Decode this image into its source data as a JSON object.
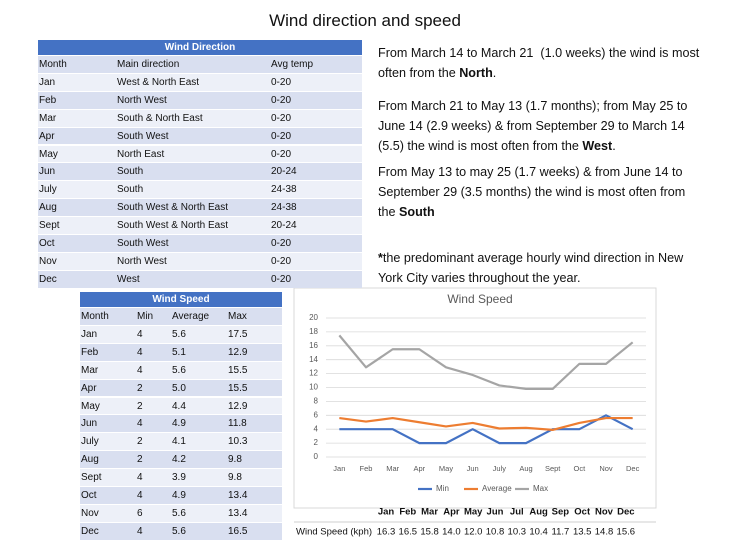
{
  "title": "Wind direction and speed",
  "direction_table": {
    "title": "Wind Direction",
    "columns": [
      "Month",
      "Main direction",
      "Avg temp"
    ],
    "rows": [
      [
        "Jan",
        "West & North East",
        "0-20"
      ],
      [
        "Feb",
        "North West",
        "0-20"
      ],
      [
        "Mar",
        "South & North East",
        "0-20"
      ],
      [
        "Apr",
        "South West",
        "0-20"
      ],
      [
        "May",
        "North East",
        "0-20"
      ],
      [
        "Jun",
        "South",
        "20-24"
      ],
      [
        "July",
        "South",
        "24-38"
      ],
      [
        "Aug",
        "South West & North East",
        "24-38"
      ],
      [
        "Sept",
        "South West & North East",
        "20-24"
      ],
      [
        "Oct",
        "South West",
        "0-20"
      ],
      [
        "Nov",
        "North West",
        "0-20"
      ],
      [
        "Dec",
        "West",
        "0-20"
      ]
    ]
  },
  "notes": [
    [
      {
        "text": "From March 14 to March 21  (1.0 weeks) the wind is most often from the "
      },
      {
        "text": "North",
        "bold": true
      },
      {
        "text": "."
      }
    ],
    [
      {
        "text": "From March 21 to May 13 (1.7 months); from May 25 to June 14 (2.9 weeks) & from September 29 to March 14 (5.5) the wind is most often from the "
      },
      {
        "text": "West",
        "bold": true
      },
      {
        "text": "."
      }
    ],
    [
      {
        "text": "From May 13 to may 25 (1.7 weeks) & from June 14 to September 29 (3.5 months) the wind is most often from the "
      },
      {
        "text": "South",
        "bold": true
      }
    ],
    [
      {
        "text": "*",
        "bold": true
      },
      {
        "text": "the predominant average hourly wind direction in New York City varies throughout the year."
      }
    ]
  ],
  "speed_table": {
    "title": "Wind Speed",
    "columns": [
      "Month",
      "Min",
      "Average",
      "Max"
    ],
    "rows": [
      [
        "Jan",
        "4",
        "5.6",
        "17.5"
      ],
      [
        "Feb",
        "4",
        "5.1",
        "12.9"
      ],
      [
        "Mar",
        "4",
        "5.6",
        "15.5"
      ],
      [
        "Apr",
        "2",
        "5.0",
        "15.5"
      ],
      [
        "May",
        "2",
        "4.4",
        "12.9"
      ],
      [
        "Jun",
        "4",
        "4.9",
        "11.8"
      ],
      [
        "July",
        "2",
        "4.1",
        "10.3"
      ],
      [
        "Aug",
        "2",
        "4.2",
        "9.8"
      ],
      [
        "Sept",
        "4",
        "3.9",
        "9.8"
      ],
      [
        "Oct",
        "4",
        "4.9",
        "13.4"
      ],
      [
        "Nov",
        "6",
        "5.6",
        "13.4"
      ],
      [
        "Dec",
        "4",
        "5.6",
        "16.5"
      ]
    ]
  },
  "chart_data": {
    "type": "line",
    "title": "Wind Speed",
    "categories": [
      "Jan",
      "Feb",
      "Mar",
      "Apr",
      "May",
      "Jun",
      "July",
      "Aug",
      "Sept",
      "Oct",
      "Nov",
      "Dec"
    ],
    "series": [
      {
        "name": "Min",
        "color": "#4472c4",
        "values": [
          4,
          4,
          4,
          2,
          2,
          4,
          2,
          2,
          4,
          4,
          6,
          4
        ]
      },
      {
        "name": "Average",
        "color": "#ed7d31",
        "values": [
          5.6,
          5.1,
          5.6,
          5.0,
          4.4,
          4.9,
          4.1,
          4.2,
          3.9,
          4.9,
          5.6,
          5.6
        ]
      },
      {
        "name": "Max",
        "color": "#a5a5a5",
        "values": [
          17.5,
          12.9,
          15.5,
          15.5,
          12.9,
          11.8,
          10.3,
          9.8,
          9.8,
          13.4,
          13.4,
          16.5
        ]
      }
    ],
    "ylim": [
      0,
      20
    ],
    "yticks": [
      0,
      2,
      4,
      6,
      8,
      10,
      12,
      14,
      16,
      18,
      20
    ],
    "grid": true,
    "legend": "bottom"
  },
  "summary_table": {
    "columns": [
      "Jan",
      "Feb",
      "Mar",
      "Apr",
      "May",
      "Jun",
      "Jul",
      "Aug",
      "Sep",
      "Oct",
      "Nov",
      "Dec"
    ],
    "row_label": "Wind Speed (kph)",
    "values": [
      "16.3",
      "16.5",
      "15.8",
      "14.0",
      "12.0",
      "10.8",
      "10.3",
      "10.4",
      "11.7",
      "13.5",
      "14.8",
      "15.6"
    ]
  }
}
